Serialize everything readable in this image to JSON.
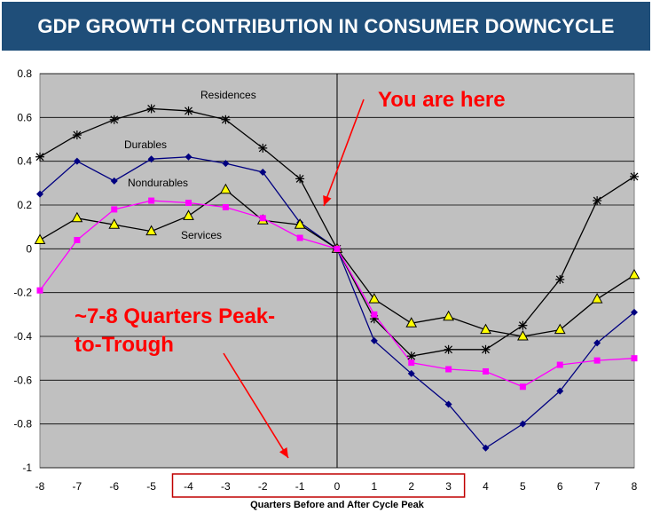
{
  "banner": {
    "title": "GDP GROWTH CONTRIBUTION IN CONSUMER DOWNCYCLE"
  },
  "chart_data": {
    "type": "line",
    "title": "GDP GROWTH CONTRIBUTION IN CONSUMER DOWNCYCLE",
    "xlabel": "Quarters Before and After Cycle Peak",
    "ylabel": "",
    "x": [
      -8,
      -7,
      -6,
      -5,
      -4,
      -3,
      -2,
      -1,
      0,
      1,
      2,
      3,
      4,
      5,
      6,
      7,
      8
    ],
    "xlim": [
      -8,
      8
    ],
    "ylim": [
      -1,
      0.8
    ],
    "y_ticks": [
      -1,
      -0.8,
      -0.6,
      -0.4,
      -0.2,
      0,
      0.2,
      0.4,
      0.6,
      0.8
    ],
    "x_ticks": [
      -8,
      -7,
      -6,
      -5,
      -4,
      -3,
      -2,
      -1,
      0,
      1,
      2,
      3,
      4,
      5,
      6,
      7,
      8
    ],
    "y_tick_labels": [
      "-1",
      "-0.8",
      "-0.6",
      "-0.4",
      "-0.2",
      "0",
      "0.2",
      "0.4",
      "0.6",
      "0.8"
    ],
    "x_tick_labels": [
      "-8",
      "-7",
      "-6",
      "-5",
      "-4",
      "-3",
      "-2",
      "-1",
      "0",
      "1",
      "2",
      "3",
      "4",
      "5",
      "6",
      "7",
      "8"
    ],
    "grid": true,
    "plot_background": "#c0c0c0",
    "series": [
      {
        "name": "Residences",
        "color": "#000000",
        "marker": "asterisk",
        "values": [
          0.42,
          0.52,
          0.59,
          0.64,
          0.63,
          0.59,
          0.46,
          0.32,
          0.0,
          -0.32,
          -0.49,
          -0.46,
          -0.46,
          -0.35,
          -0.14,
          0.22,
          0.33
        ]
      },
      {
        "name": "Durables",
        "color": "#000080",
        "marker": "diamond",
        "values": [
          0.25,
          0.4,
          0.31,
          0.41,
          0.42,
          0.39,
          0.35,
          0.12,
          0.0,
          -0.42,
          -0.57,
          -0.71,
          -0.91,
          -0.8,
          -0.65,
          -0.43,
          -0.29
        ]
      },
      {
        "name": "Nondurables",
        "color": "#000000",
        "marker": "triangle",
        "marker_fill": "#ffff00",
        "values": [
          0.04,
          0.14,
          0.11,
          0.08,
          0.15,
          0.27,
          0.13,
          0.11,
          0.0,
          -0.23,
          -0.34,
          -0.31,
          -0.37,
          -0.4,
          -0.37,
          -0.23,
          -0.12
        ]
      },
      {
        "name": "Services",
        "color": "#ff00ff",
        "marker": "square",
        "values": [
          -0.19,
          0.04,
          0.18,
          0.22,
          0.21,
          0.19,
          0.14,
          0.05,
          0.0,
          -0.3,
          -0.52,
          -0.55,
          -0.56,
          -0.63,
          -0.53,
          -0.51,
          -0.5
        ]
      }
    ],
    "series_labels": [
      "Residences",
      "Durables",
      "Nondurables",
      "Services"
    ],
    "annotations": {
      "you_are_here": "You are here",
      "peak_line1": "~7-8 Quarters Peak-",
      "peak_line2": "to-Trough"
    },
    "annotation_color": "#ff0000",
    "highlight_box": {
      "x_from": -4,
      "x_to": 3,
      "color": "#c00000"
    }
  }
}
